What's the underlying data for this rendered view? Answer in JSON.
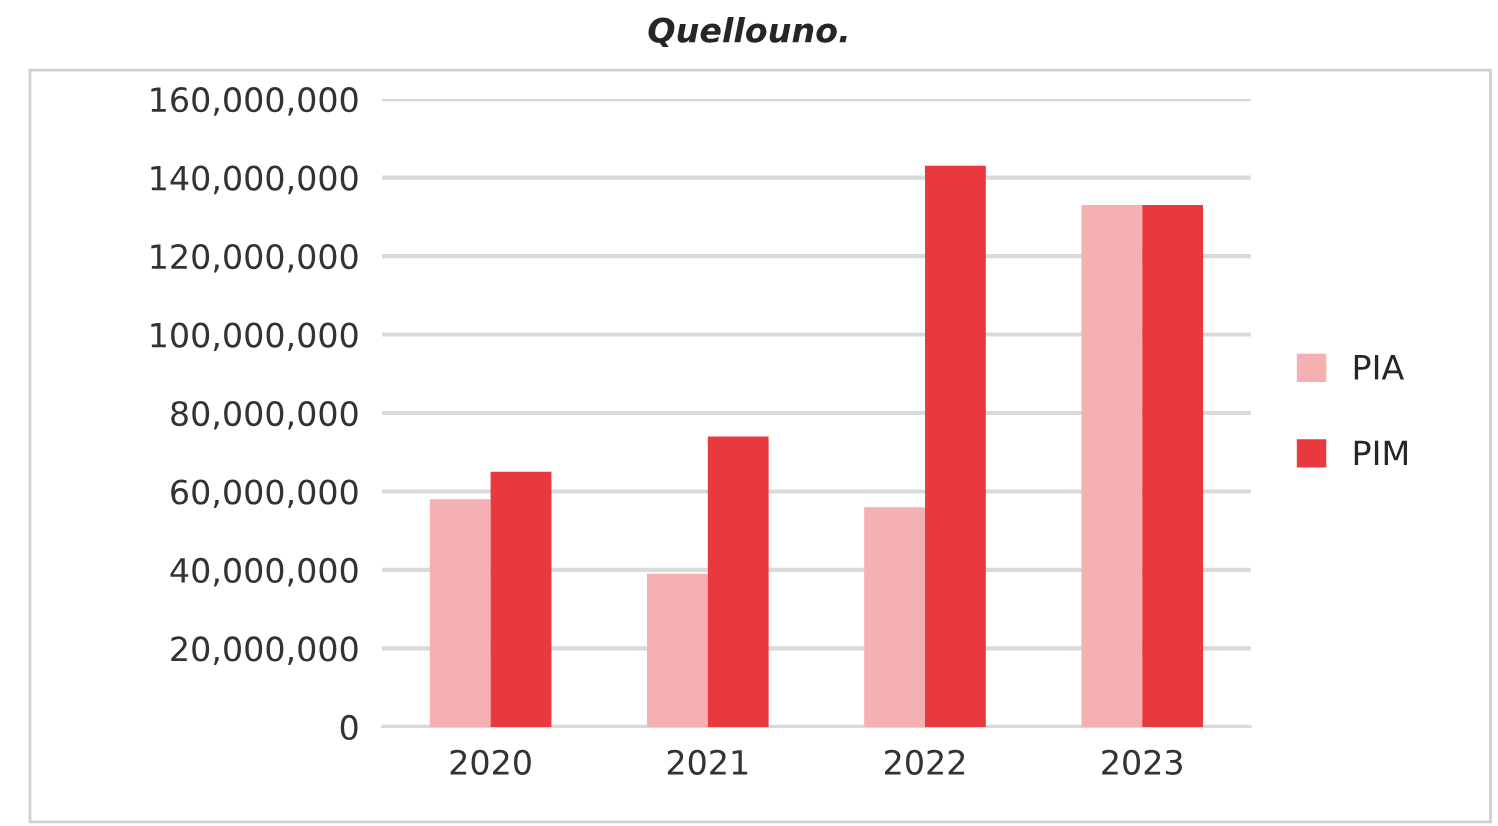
{
  "chart_data": {
    "type": "bar",
    "title": "Quellouno.",
    "categories": [
      "2020",
      "2021",
      "2022",
      "2023"
    ],
    "series": [
      {
        "name": "PIA",
        "color": "#f5b0b2",
        "values": [
          58000000,
          39000000,
          56000000,
          133000000
        ]
      },
      {
        "name": "PIM",
        "color": "#e83a3e",
        "values": [
          65000000,
          74000000,
          143000000,
          133000000
        ]
      }
    ],
    "ylim": [
      0,
      160000000
    ],
    "yticks": [
      {
        "value": 0,
        "label": "0"
      },
      {
        "value": 20000000,
        "label": "20,000,000"
      },
      {
        "value": 40000000,
        "label": "40,000,000"
      },
      {
        "value": 60000000,
        "label": "60,000,000"
      },
      {
        "value": 80000000,
        "label": "80,000,000"
      },
      {
        "value": 100000000,
        "label": "100,000,000"
      },
      {
        "value": 120000000,
        "label": "120,000,000"
      },
      {
        "value": 140000000,
        "label": "140,000,000"
      },
      {
        "value": 160000000,
        "label": "160,000,000"
      }
    ],
    "grid": "y",
    "legend": "right"
  }
}
